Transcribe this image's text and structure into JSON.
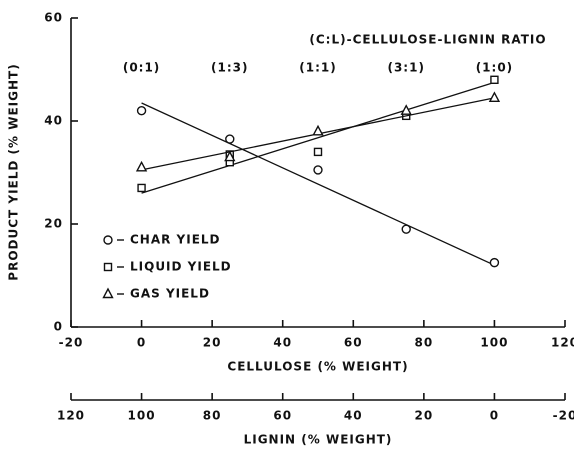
{
  "chart_data": {
    "type": "scatter",
    "annotation": "(C:L)-CELLULOSE-LIGNIN RATIO",
    "ratio_labels": [
      "(0:1)",
      "(1:3)",
      "(1:1)",
      "(3:1)",
      "(1:0)"
    ],
    "ratio_x": [
      0,
      25,
      50,
      75,
      100
    ],
    "x_label": "CELLULOSE (% WEIGHT)",
    "y_label": "PRODUCT YIELD (% WEIGHT)",
    "x2_label": "LIGNIN (% WEIGHT)",
    "xlim": [
      -20,
      120
    ],
    "xticks": [
      -20,
      0,
      20,
      40,
      60,
      80,
      100,
      120
    ],
    "ylim": [
      0,
      60
    ],
    "yticks": [
      0,
      20,
      40,
      60
    ],
    "x2lim": [
      120,
      -20
    ],
    "x2ticks": [
      120,
      100,
      80,
      60,
      40,
      20,
      0,
      -20
    ],
    "series": [
      {
        "name": "CHAR YIELD",
        "marker": "circle",
        "color": "#111",
        "x": [
          0,
          25,
          50,
          75,
          100
        ],
        "values": [
          42,
          36.5,
          30.5,
          19,
          12.5
        ],
        "fit_x": [
          0,
          100
        ],
        "fit_values": [
          43.5,
          12
        ]
      },
      {
        "name": "LIQUID YIELD",
        "marker": "square",
        "color": "#111",
        "x": [
          0,
          25,
          25,
          50,
          75,
          100
        ],
        "values": [
          27,
          32,
          33.5,
          34,
          41,
          48
        ],
        "fit_x": [
          0,
          100
        ],
        "fit_values": [
          26,
          47.5
        ]
      },
      {
        "name": "GAS YIELD",
        "marker": "triangle",
        "color": "#111",
        "x": [
          0,
          25,
          50,
          75,
          100
        ],
        "values": [
          31,
          33,
          38,
          42,
          44.5
        ],
        "fit_x": [
          0,
          100
        ],
        "fit_values": [
          30.5,
          44.5
        ]
      }
    ]
  }
}
